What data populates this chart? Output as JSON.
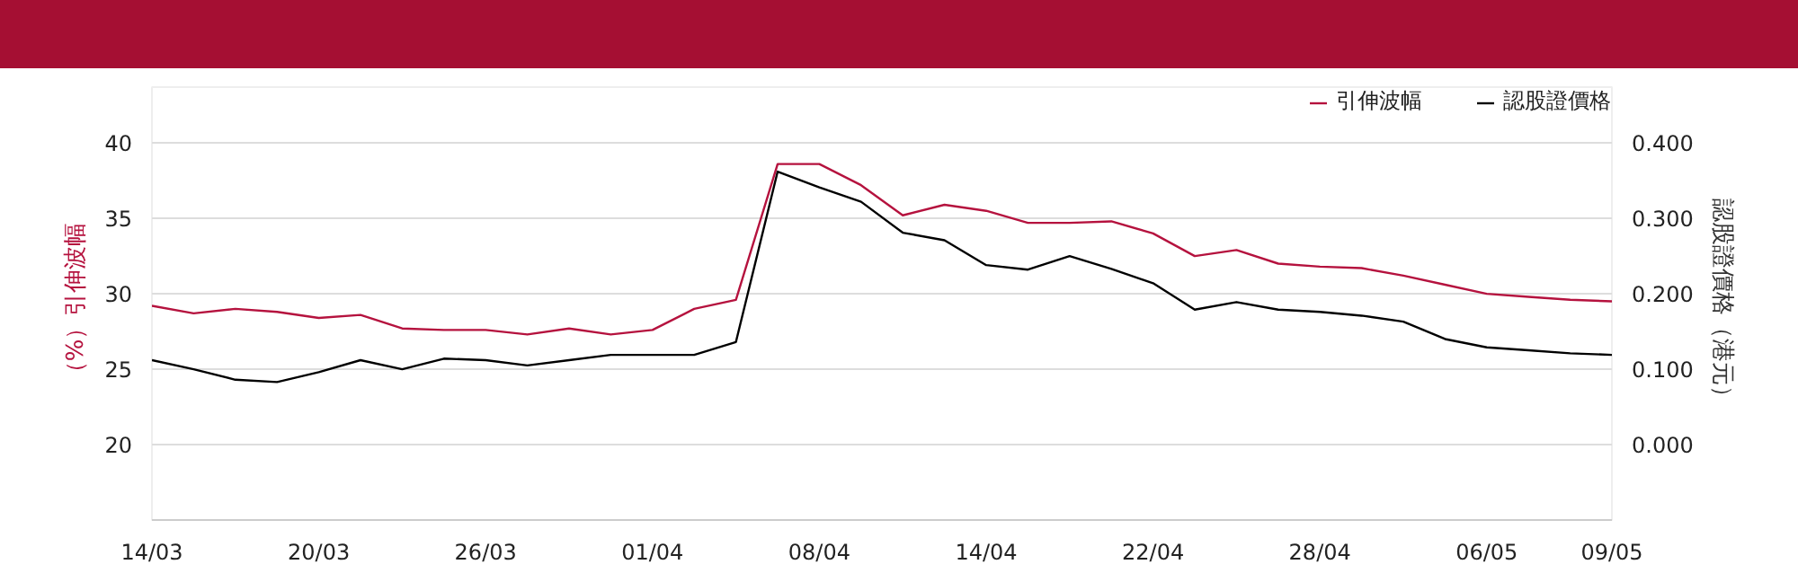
{
  "chart_data": {
    "type": "line",
    "categories": [
      "14/03",
      null,
      null,
      null,
      "20/03",
      null,
      null,
      null,
      "26/03",
      null,
      null,
      null,
      "01/04",
      null,
      null,
      null,
      "08/04",
      null,
      null,
      null,
      "14/04",
      null,
      null,
      null,
      "22/04",
      null,
      null,
      null,
      "28/04",
      null,
      null,
      null,
      "06/05",
      null,
      null,
      "09/05"
    ],
    "series": [
      {
        "name": "引伸波幅",
        "color": "#b5123e",
        "values": [
          29.2,
          28.7,
          29.0,
          28.8,
          28.4,
          28.6,
          27.7,
          27.6,
          27.6,
          27.3,
          27.7,
          27.3,
          27.6,
          29.0,
          29.6,
          38.6,
          38.6,
          37.2,
          35.2,
          35.9,
          35.5,
          34.7,
          34.7,
          34.8,
          34.0,
          32.5,
          32.9,
          32.0,
          31.8,
          31.7,
          31.2,
          30.6,
          30.0,
          29.8,
          29.6,
          29.5
        ]
      },
      {
        "name": "認股證價格",
        "color": "#000000",
        "axis": "y2",
        "values": [
          0.112,
          0.1,
          0.086,
          0.083,
          0.096,
          0.112,
          0.1,
          0.114,
          0.112,
          0.105,
          0.112,
          0.119,
          0.119,
          0.119,
          0.136,
          0.362,
          0.341,
          0.322,
          0.281,
          0.271,
          0.238,
          0.232,
          0.25,
          0.233,
          0.214,
          0.179,
          0.189,
          0.179,
          0.176,
          0.171,
          0.163,
          0.14,
          0.129,
          0.125,
          0.121,
          0.119
        ]
      }
    ],
    "ylabel": "（%）引伸波幅",
    "y2label": "認股證價格（港元）",
    "ylim": [
      15,
      43.7
    ],
    "yticks": [
      20,
      25,
      30,
      35,
      40
    ],
    "y2lim": [
      -0.1,
      0.474
    ],
    "y2ticks": [
      {
        "value": 0,
        "label": "0.000"
      },
      {
        "value": 0.1,
        "label": "0.100"
      },
      {
        "value": 0.2,
        "label": "0.200"
      },
      {
        "value": 0.3,
        "label": "0.300"
      },
      {
        "value": 0.4,
        "label": "0.400"
      }
    ],
    "grid": "y",
    "legend": "top right",
    "marker": "none",
    "line_style": "solid"
  }
}
